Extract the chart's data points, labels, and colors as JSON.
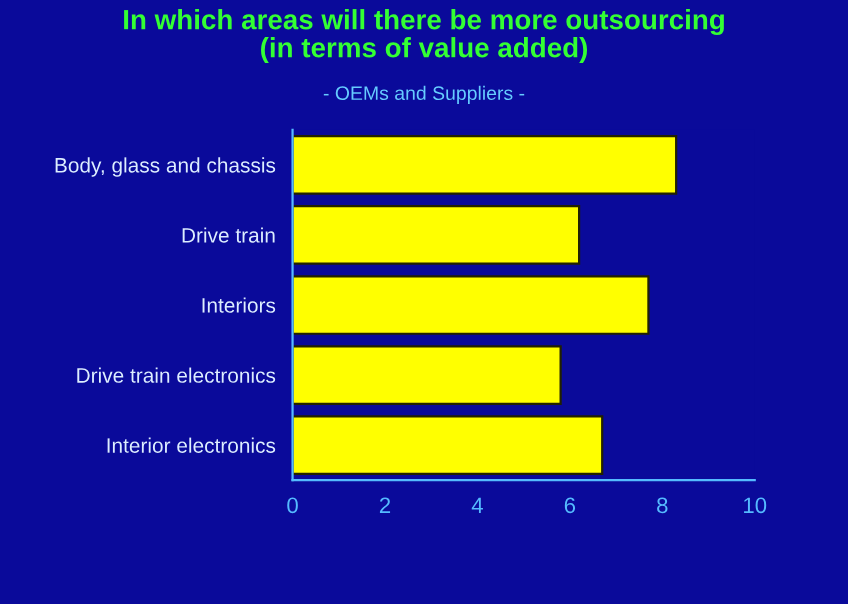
{
  "chart_data": {
    "type": "bar",
    "orientation": "horizontal",
    "title": "In which areas will there be more outsourcing\n(in terms of value added)",
    "subtitle": "- OEMs and Suppliers -",
    "categories": [
      "Body, glass and chassis",
      "Drive train",
      "Interiors",
      "Drive train electronics",
      "Interior electronics"
    ],
    "values": [
      8.3,
      6.2,
      7.7,
      5.8,
      6.7
    ],
    "color": "#ffff00",
    "xlim": [
      0,
      10
    ],
    "xticks": [
      0,
      2,
      4,
      6,
      8,
      10
    ],
    "grid": false,
    "legend": false
  }
}
